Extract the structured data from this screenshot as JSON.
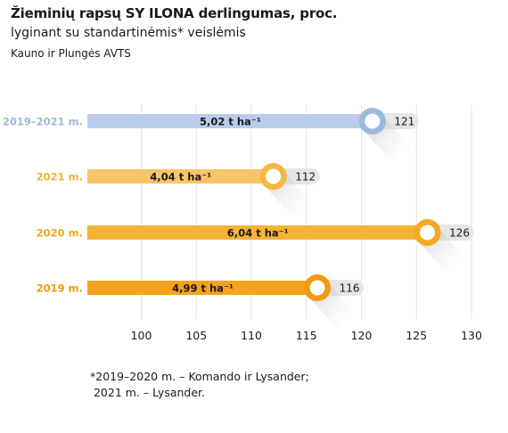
{
  "header": {
    "title": "Žieminių rapsų SY ILONA derlingumas, proc.",
    "subtitle": "lyginant su standartinėmis* veislėmis",
    "location": "Kauno ir Plungės AVTS"
  },
  "footnote": {
    "line1": "*2019–2020 m. – Komando ir Lysander;",
    "line2": " 2021 m. – Lysander."
  },
  "chart_data": {
    "type": "bar",
    "orientation": "horizontal",
    "categories": [
      "2019–2021 m.",
      "2021 m.",
      "2020 m.",
      "2019 m."
    ],
    "values": [
      121,
      112,
      126,
      116
    ],
    "yield_labels": [
      "5,02 t ha⁻¹",
      "4,04 t ha⁻¹",
      "6,04 t ha⁻¹",
      "4,99 t ha⁻¹"
    ],
    "colors": [
      "#b9cdea",
      "#f8c56a",
      "#f6b234",
      "#f5a31d"
    ],
    "label_colors": [
      "#9fb6da",
      "#f3b237",
      "#f2a818",
      "#f29a0a"
    ],
    "ring_colors": [
      "#9db8e0",
      "#f5b73e",
      "#f4a823",
      "#f39a12"
    ],
    "xlim": [
      95,
      130
    ],
    "xticks": [
      100,
      105,
      110,
      115,
      120,
      125,
      130
    ],
    "grid": true
  }
}
